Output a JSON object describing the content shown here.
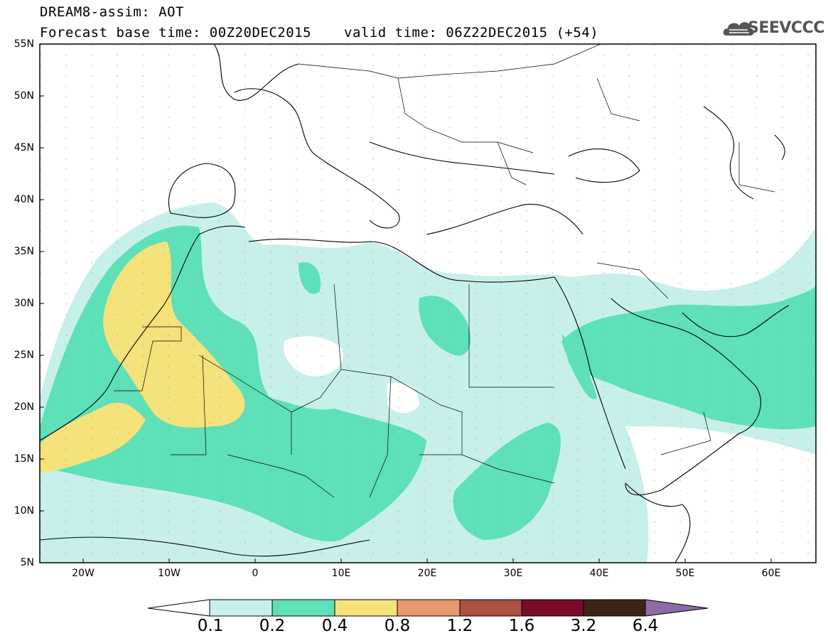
{
  "header": {
    "title_line1": "DREAM8-assim: AOT",
    "title_line2": "Forecast base time: 00Z20DEC2015",
    "valid_time": "valid time: 06Z22DEC2015 (+54)",
    "logo_text": "SEEVCCC"
  },
  "map": {
    "lat_labels": [
      "55N",
      "50N",
      "45N",
      "40N",
      "35N",
      "30N",
      "25N",
      "20N",
      "15N",
      "10N",
      "5N"
    ],
    "lon_labels": [
      "20W",
      "10W",
      "0",
      "10E",
      "20E",
      "30E",
      "40E",
      "50E",
      "60E"
    ],
    "field": "Aerosol optical thickness (AOT)",
    "lon_range": [
      -25,
      65
    ],
    "lat_range": [
      5,
      55
    ]
  },
  "colorbar": {
    "levels": [
      "0.1",
      "0.2",
      "0.4",
      "0.8",
      "1.2",
      "1.6",
      "3.2",
      "6.4"
    ],
    "colors": [
      "#c8f0ea",
      "#5ee0b8",
      "#f5e27a",
      "#e89a6e",
      "#ad5142",
      "#7b0b2a",
      "#3d2415",
      "#8d6aa8"
    ],
    "under_color": "#ffffff"
  }
}
